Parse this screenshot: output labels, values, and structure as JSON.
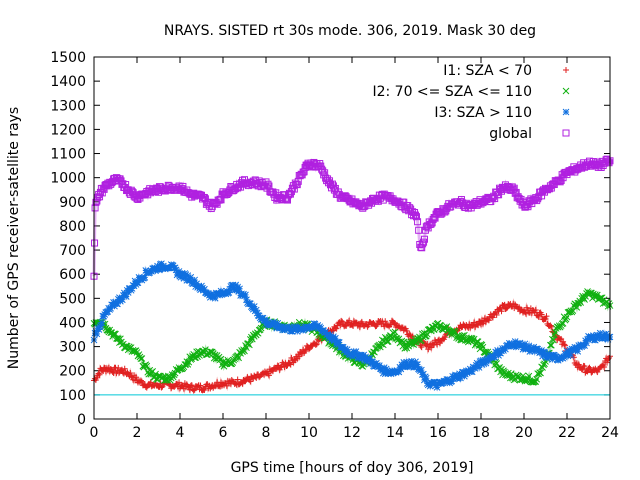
{
  "chart_data": {
    "type": "scatter",
    "title": "NRAYS. SISTED rt 30s mode. 306, 2019. Mask 30 deg",
    "xlabel": "GPS time [hours of doy 306, 2019]",
    "ylabel": "Number of GPS receiver-satellite rays",
    "xlim": [
      0,
      24
    ],
    "ylim": [
      0,
      1500
    ],
    "xticks": [
      "0",
      "2",
      "4",
      "6",
      "8",
      "10",
      "12",
      "14",
      "16",
      "18",
      "20",
      "22",
      "24"
    ],
    "yticks": [
      "0",
      "100",
      "200",
      "300",
      "400",
      "500",
      "600",
      "700",
      "800",
      "900",
      "1000",
      "1100",
      "1200",
      "1300",
      "1400",
      "1500"
    ],
    "reference_line": {
      "y": 100,
      "color": "#00c8d8"
    },
    "legend_position": "top-right",
    "series": [
      {
        "name": "I1: SZA < 70",
        "marker": "+",
        "color": "#e02020",
        "points": [
          [
            0,
            160
          ],
          [
            0.3,
            200
          ],
          [
            0.6,
            210
          ],
          [
            1,
            200
          ],
          [
            1.3,
            200
          ],
          [
            1.6,
            190
          ],
          [
            2,
            160
          ],
          [
            2.5,
            140
          ],
          [
            3,
            140
          ],
          [
            3.5,
            140
          ],
          [
            4,
            140
          ],
          [
            4.5,
            130
          ],
          [
            5,
            130
          ],
          [
            5.5,
            140
          ],
          [
            6,
            150
          ],
          [
            6.5,
            150
          ],
          [
            7,
            160
          ],
          [
            7.5,
            170
          ],
          [
            8,
            185
          ],
          [
            8.5,
            210
          ],
          [
            9,
            230
          ],
          [
            9.5,
            260
          ],
          [
            10,
            300
          ],
          [
            10.5,
            330
          ],
          [
            11,
            365
          ],
          [
            11.5,
            395
          ],
          [
            12,
            395
          ],
          [
            12.5,
            390
          ],
          [
            13,
            395
          ],
          [
            13.5,
            395
          ],
          [
            14,
            395
          ],
          [
            14.5,
            370
          ],
          [
            15,
            320
          ],
          [
            15.5,
            300
          ],
          [
            16,
            320
          ],
          [
            16.5,
            360
          ],
          [
            17,
            380
          ],
          [
            17.5,
            385
          ],
          [
            18,
            400
          ],
          [
            18.5,
            430
          ],
          [
            19,
            460
          ],
          [
            19.5,
            470
          ],
          [
            20,
            450
          ],
          [
            20.5,
            445
          ],
          [
            21,
            420
          ],
          [
            21.5,
            345
          ],
          [
            22,
            290
          ],
          [
            22.5,
            220
          ],
          [
            23,
            200
          ],
          [
            23.5,
            200
          ],
          [
            24,
            260
          ]
        ]
      },
      {
        "name": "I2: 70 <= SZA <= 110",
        "marker": "x",
        "color": "#10b010",
        "points": [
          [
            0,
            400
          ],
          [
            0.3,
            410
          ],
          [
            0.6,
            380
          ],
          [
            1,
            340
          ],
          [
            1.5,
            300
          ],
          [
            2,
            270
          ],
          [
            2.5,
            200
          ],
          [
            3,
            170
          ],
          [
            3.5,
            170
          ],
          [
            4,
            210
          ],
          [
            4.5,
            250
          ],
          [
            5,
            280
          ],
          [
            5.5,
            270
          ],
          [
            6,
            230
          ],
          [
            6.5,
            240
          ],
          [
            7,
            290
          ],
          [
            7.5,
            350
          ],
          [
            8,
            400
          ],
          [
            8.5,
            390
          ],
          [
            9,
            380
          ],
          [
            9.5,
            390
          ],
          [
            10,
            380
          ],
          [
            10.5,
            355
          ],
          [
            11,
            320
          ],
          [
            11.5,
            280
          ],
          [
            12,
            250
          ],
          [
            12.5,
            225
          ],
          [
            13,
            270
          ],
          [
            13.5,
            325
          ],
          [
            14,
            350
          ],
          [
            14.5,
            300
          ],
          [
            15,
            320
          ],
          [
            15.5,
            360
          ],
          [
            16,
            385
          ],
          [
            16.5,
            370
          ],
          [
            17,
            340
          ],
          [
            17.5,
            330
          ],
          [
            18,
            300
          ],
          [
            18.5,
            250
          ],
          [
            19,
            190
          ],
          [
            19.5,
            175
          ],
          [
            20,
            170
          ],
          [
            20.5,
            160
          ],
          [
            21,
            230
          ],
          [
            21.5,
            370
          ],
          [
            22,
            430
          ],
          [
            22.5,
            480
          ],
          [
            23,
            520
          ],
          [
            23.5,
            500
          ],
          [
            24,
            470
          ]
        ]
      },
      {
        "name": "I3: SZA > 110",
        "marker": "*",
        "color": "#1070e0",
        "points": [
          [
            0,
            340
          ],
          [
            0.5,
            430
          ],
          [
            1,
            480
          ],
          [
            1.5,
            520
          ],
          [
            2,
            570
          ],
          [
            2.5,
            610
          ],
          [
            3,
            630
          ],
          [
            3.5,
            635
          ],
          [
            4,
            600
          ],
          [
            4.5,
            580
          ],
          [
            5,
            540
          ],
          [
            5.5,
            510
          ],
          [
            6,
            520
          ],
          [
            6.5,
            550
          ],
          [
            7,
            510
          ],
          [
            7.5,
            450
          ],
          [
            8,
            400
          ],
          [
            8.5,
            385
          ],
          [
            9,
            375
          ],
          [
            9.5,
            370
          ],
          [
            10,
            385
          ],
          [
            10.5,
            380
          ],
          [
            11,
            340
          ],
          [
            11.5,
            300
          ],
          [
            12,
            270
          ],
          [
            12.5,
            260
          ],
          [
            13,
            230
          ],
          [
            13.5,
            200
          ],
          [
            14,
            195
          ],
          [
            14.5,
            230
          ],
          [
            15,
            225
          ],
          [
            15.5,
            150
          ],
          [
            16,
            140
          ],
          [
            16.5,
            160
          ],
          [
            17,
            180
          ],
          [
            17.5,
            200
          ],
          [
            18,
            230
          ],
          [
            18.5,
            260
          ],
          [
            19,
            285
          ],
          [
            19.5,
            315
          ],
          [
            20,
            300
          ],
          [
            20.5,
            285
          ],
          [
            21,
            265
          ],
          [
            21.5,
            250
          ],
          [
            22,
            270
          ],
          [
            22.5,
            290
          ],
          [
            23,
            330
          ],
          [
            23.5,
            345
          ],
          [
            24,
            340
          ]
        ]
      },
      {
        "name": "global",
        "marker": "square",
        "color": "#b020e0",
        "points": [
          [
            0,
            600
          ],
          [
            0.05,
            880
          ],
          [
            0.3,
            940
          ],
          [
            0.6,
            970
          ],
          [
            1,
            990
          ],
          [
            1.3,
            980
          ],
          [
            1.6,
            950
          ],
          [
            2,
            920
          ],
          [
            2.5,
            940
          ],
          [
            3,
            950
          ],
          [
            3.5,
            960
          ],
          [
            4,
            960
          ],
          [
            4.5,
            930
          ],
          [
            5,
            920
          ],
          [
            5.5,
            880
          ],
          [
            6,
            930
          ],
          [
            6.5,
            960
          ],
          [
            7,
            980
          ],
          [
            7.5,
            980
          ],
          [
            8,
            970
          ],
          [
            8.5,
            920
          ],
          [
            9,
            920
          ],
          [
            9.5,
            990
          ],
          [
            10,
            1060
          ],
          [
            10.5,
            1050
          ],
          [
            11,
            970
          ],
          [
            11.5,
            920
          ],
          [
            12,
            900
          ],
          [
            12.5,
            880
          ],
          [
            13,
            910
          ],
          [
            13.5,
            920
          ],
          [
            14,
            910
          ],
          [
            14.5,
            880
          ],
          [
            15,
            840
          ],
          [
            15.2,
            700
          ],
          [
            15.5,
            800
          ],
          [
            16,
            850
          ],
          [
            16.5,
            880
          ],
          [
            17,
            900
          ],
          [
            17.5,
            880
          ],
          [
            18,
            900
          ],
          [
            18.5,
            910
          ],
          [
            19,
            960
          ],
          [
            19.5,
            950
          ],
          [
            20,
            880
          ],
          [
            20.5,
            910
          ],
          [
            21,
            950
          ],
          [
            21.5,
            980
          ],
          [
            22,
            1020
          ],
          [
            22.5,
            1040
          ],
          [
            23,
            1060
          ],
          [
            23.5,
            1050
          ],
          [
            24,
            1070
          ]
        ]
      }
    ]
  }
}
